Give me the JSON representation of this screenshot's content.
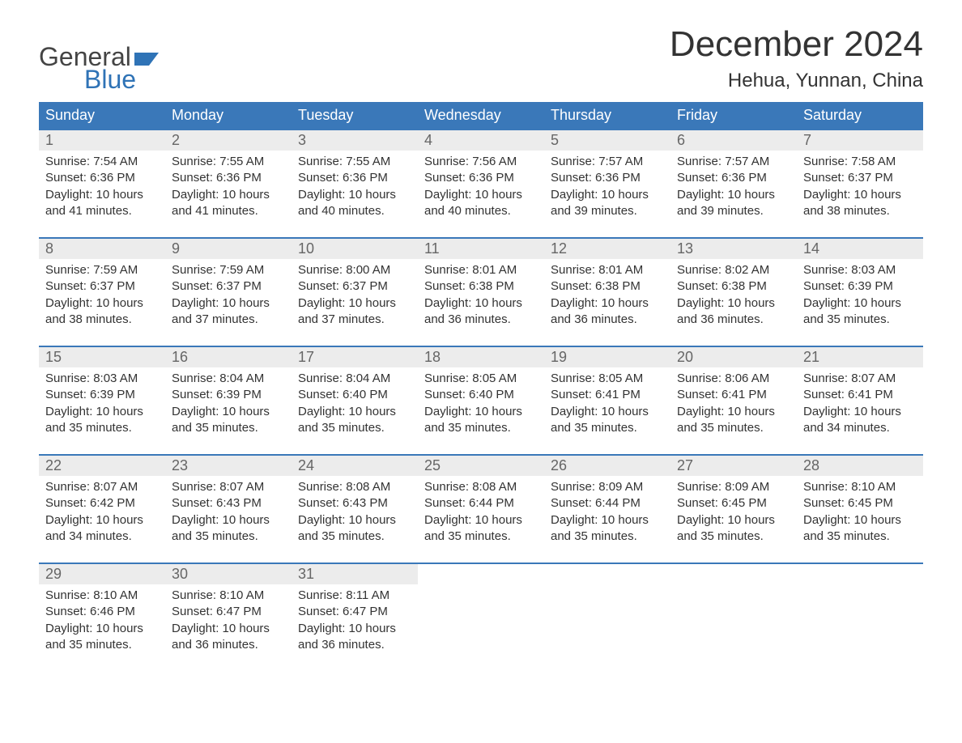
{
  "logo": {
    "text_top": "General",
    "text_bottom": "Blue"
  },
  "title": "December 2024",
  "location": "Hehua, Yunnan, China",
  "colors": {
    "header_bg": "#3a78b9",
    "header_fg": "#ffffff",
    "daynum_bg": "#ececec",
    "daynum_fg": "#666666",
    "body_fg": "#333333",
    "accent": "#2f73b6",
    "row_border": "#3a78b9"
  },
  "typography": {
    "title_fontsize": 44,
    "location_fontsize": 24,
    "header_fontsize": 18,
    "daynum_fontsize": 18,
    "body_fontsize": 15
  },
  "weekdays": [
    "Sunday",
    "Monday",
    "Tuesday",
    "Wednesday",
    "Thursday",
    "Friday",
    "Saturday"
  ],
  "labels": {
    "sunrise": "Sunrise:",
    "sunset": "Sunset:",
    "daylight": "Daylight:"
  },
  "days": [
    {
      "n": 1,
      "sunrise": "7:54 AM",
      "sunset": "6:36 PM",
      "daylight": "10 hours and 41 minutes."
    },
    {
      "n": 2,
      "sunrise": "7:55 AM",
      "sunset": "6:36 PM",
      "daylight": "10 hours and 41 minutes."
    },
    {
      "n": 3,
      "sunrise": "7:55 AM",
      "sunset": "6:36 PM",
      "daylight": "10 hours and 40 minutes."
    },
    {
      "n": 4,
      "sunrise": "7:56 AM",
      "sunset": "6:36 PM",
      "daylight": "10 hours and 40 minutes."
    },
    {
      "n": 5,
      "sunrise": "7:57 AM",
      "sunset": "6:36 PM",
      "daylight": "10 hours and 39 minutes."
    },
    {
      "n": 6,
      "sunrise": "7:57 AM",
      "sunset": "6:36 PM",
      "daylight": "10 hours and 39 minutes."
    },
    {
      "n": 7,
      "sunrise": "7:58 AM",
      "sunset": "6:37 PM",
      "daylight": "10 hours and 38 minutes."
    },
    {
      "n": 8,
      "sunrise": "7:59 AM",
      "sunset": "6:37 PM",
      "daylight": "10 hours and 38 minutes."
    },
    {
      "n": 9,
      "sunrise": "7:59 AM",
      "sunset": "6:37 PM",
      "daylight": "10 hours and 37 minutes."
    },
    {
      "n": 10,
      "sunrise": "8:00 AM",
      "sunset": "6:37 PM",
      "daylight": "10 hours and 37 minutes."
    },
    {
      "n": 11,
      "sunrise": "8:01 AM",
      "sunset": "6:38 PM",
      "daylight": "10 hours and 36 minutes."
    },
    {
      "n": 12,
      "sunrise": "8:01 AM",
      "sunset": "6:38 PM",
      "daylight": "10 hours and 36 minutes."
    },
    {
      "n": 13,
      "sunrise": "8:02 AM",
      "sunset": "6:38 PM",
      "daylight": "10 hours and 36 minutes."
    },
    {
      "n": 14,
      "sunrise": "8:03 AM",
      "sunset": "6:39 PM",
      "daylight": "10 hours and 35 minutes."
    },
    {
      "n": 15,
      "sunrise": "8:03 AM",
      "sunset": "6:39 PM",
      "daylight": "10 hours and 35 minutes."
    },
    {
      "n": 16,
      "sunrise": "8:04 AM",
      "sunset": "6:39 PM",
      "daylight": "10 hours and 35 minutes."
    },
    {
      "n": 17,
      "sunrise": "8:04 AM",
      "sunset": "6:40 PM",
      "daylight": "10 hours and 35 minutes."
    },
    {
      "n": 18,
      "sunrise": "8:05 AM",
      "sunset": "6:40 PM",
      "daylight": "10 hours and 35 minutes."
    },
    {
      "n": 19,
      "sunrise": "8:05 AM",
      "sunset": "6:41 PM",
      "daylight": "10 hours and 35 minutes."
    },
    {
      "n": 20,
      "sunrise": "8:06 AM",
      "sunset": "6:41 PM",
      "daylight": "10 hours and 35 minutes."
    },
    {
      "n": 21,
      "sunrise": "8:07 AM",
      "sunset": "6:41 PM",
      "daylight": "10 hours and 34 minutes."
    },
    {
      "n": 22,
      "sunrise": "8:07 AM",
      "sunset": "6:42 PM",
      "daylight": "10 hours and 34 minutes."
    },
    {
      "n": 23,
      "sunrise": "8:07 AM",
      "sunset": "6:43 PM",
      "daylight": "10 hours and 35 minutes."
    },
    {
      "n": 24,
      "sunrise": "8:08 AM",
      "sunset": "6:43 PM",
      "daylight": "10 hours and 35 minutes."
    },
    {
      "n": 25,
      "sunrise": "8:08 AM",
      "sunset": "6:44 PM",
      "daylight": "10 hours and 35 minutes."
    },
    {
      "n": 26,
      "sunrise": "8:09 AM",
      "sunset": "6:44 PM",
      "daylight": "10 hours and 35 minutes."
    },
    {
      "n": 27,
      "sunrise": "8:09 AM",
      "sunset": "6:45 PM",
      "daylight": "10 hours and 35 minutes."
    },
    {
      "n": 28,
      "sunrise": "8:10 AM",
      "sunset": "6:45 PM",
      "daylight": "10 hours and 35 minutes."
    },
    {
      "n": 29,
      "sunrise": "8:10 AM",
      "sunset": "6:46 PM",
      "daylight": "10 hours and 35 minutes."
    },
    {
      "n": 30,
      "sunrise": "8:10 AM",
      "sunset": "6:47 PM",
      "daylight": "10 hours and 36 minutes."
    },
    {
      "n": 31,
      "sunrise": "8:11 AM",
      "sunset": "6:47 PM",
      "daylight": "10 hours and 36 minutes."
    }
  ],
  "grid": {
    "start_weekday_index": 0,
    "rows": 5,
    "cols": 7
  }
}
